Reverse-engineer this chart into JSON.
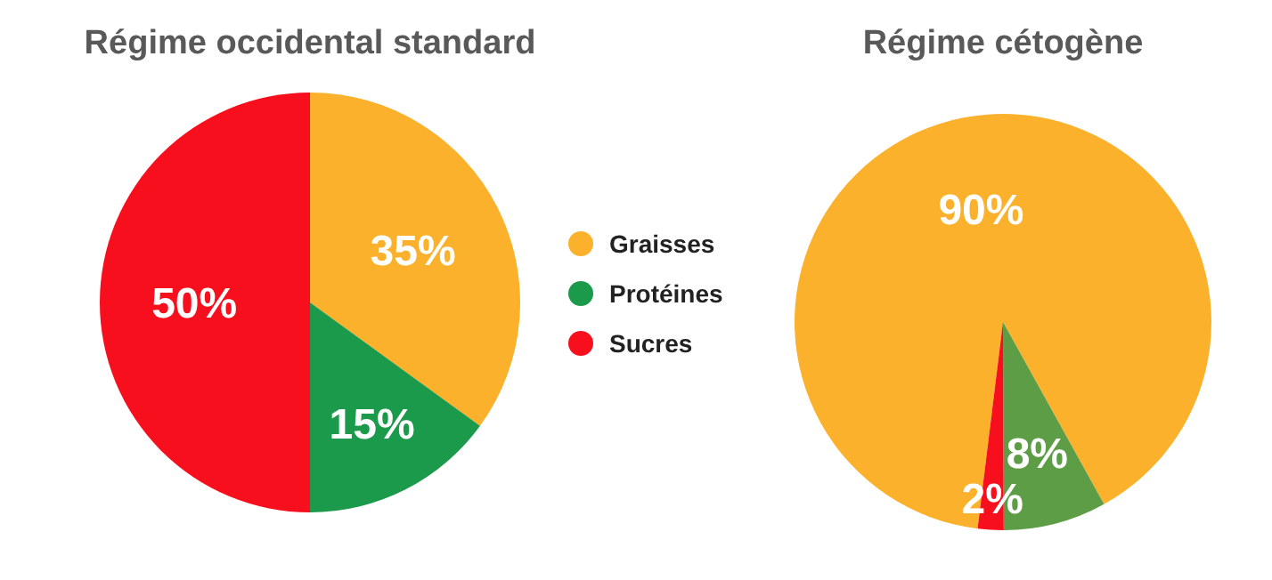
{
  "chart_data": [
    {
      "type": "pie",
      "title": "Régime occidental standard",
      "categories": [
        "Graisses",
        "Protéines",
        "Sucres"
      ],
      "values": [
        35,
        15,
        50
      ],
      "colors": [
        "#fbb12b",
        "#1a9a4a",
        "#f70f1e"
      ],
      "value_labels": [
        "35%",
        "15%",
        "50%"
      ],
      "legend": "right"
    },
    {
      "type": "pie",
      "title": "Régime cétogène",
      "categories": [
        null,
        null,
        null
      ],
      "values": [
        90,
        8,
        2
      ],
      "colors": [
        "#fbb12b",
        "#5c9d45",
        "#f70f1e"
      ],
      "value_labels": [
        "90%",
        "8%",
        "2%"
      ]
    }
  ]
}
